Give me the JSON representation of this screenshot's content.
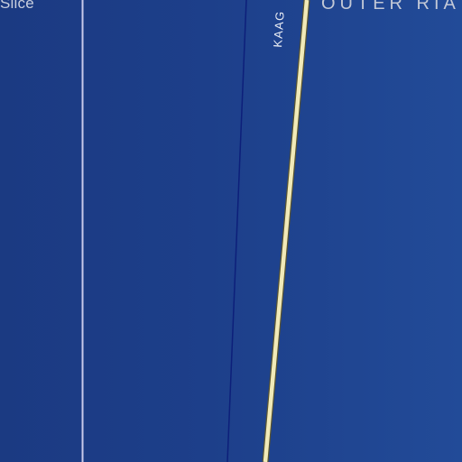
{
  "map": {
    "background_color": "#1d3f8a",
    "labels": {
      "place": "Slice",
      "region": "OUTER RIA",
      "road": "KAAG"
    },
    "features": {
      "road_color": "#f1eab8",
      "road_casing_color": "#5a5530",
      "boundary_color": "#c7c9ea",
      "channel_color": "#0d1f7a"
    }
  }
}
